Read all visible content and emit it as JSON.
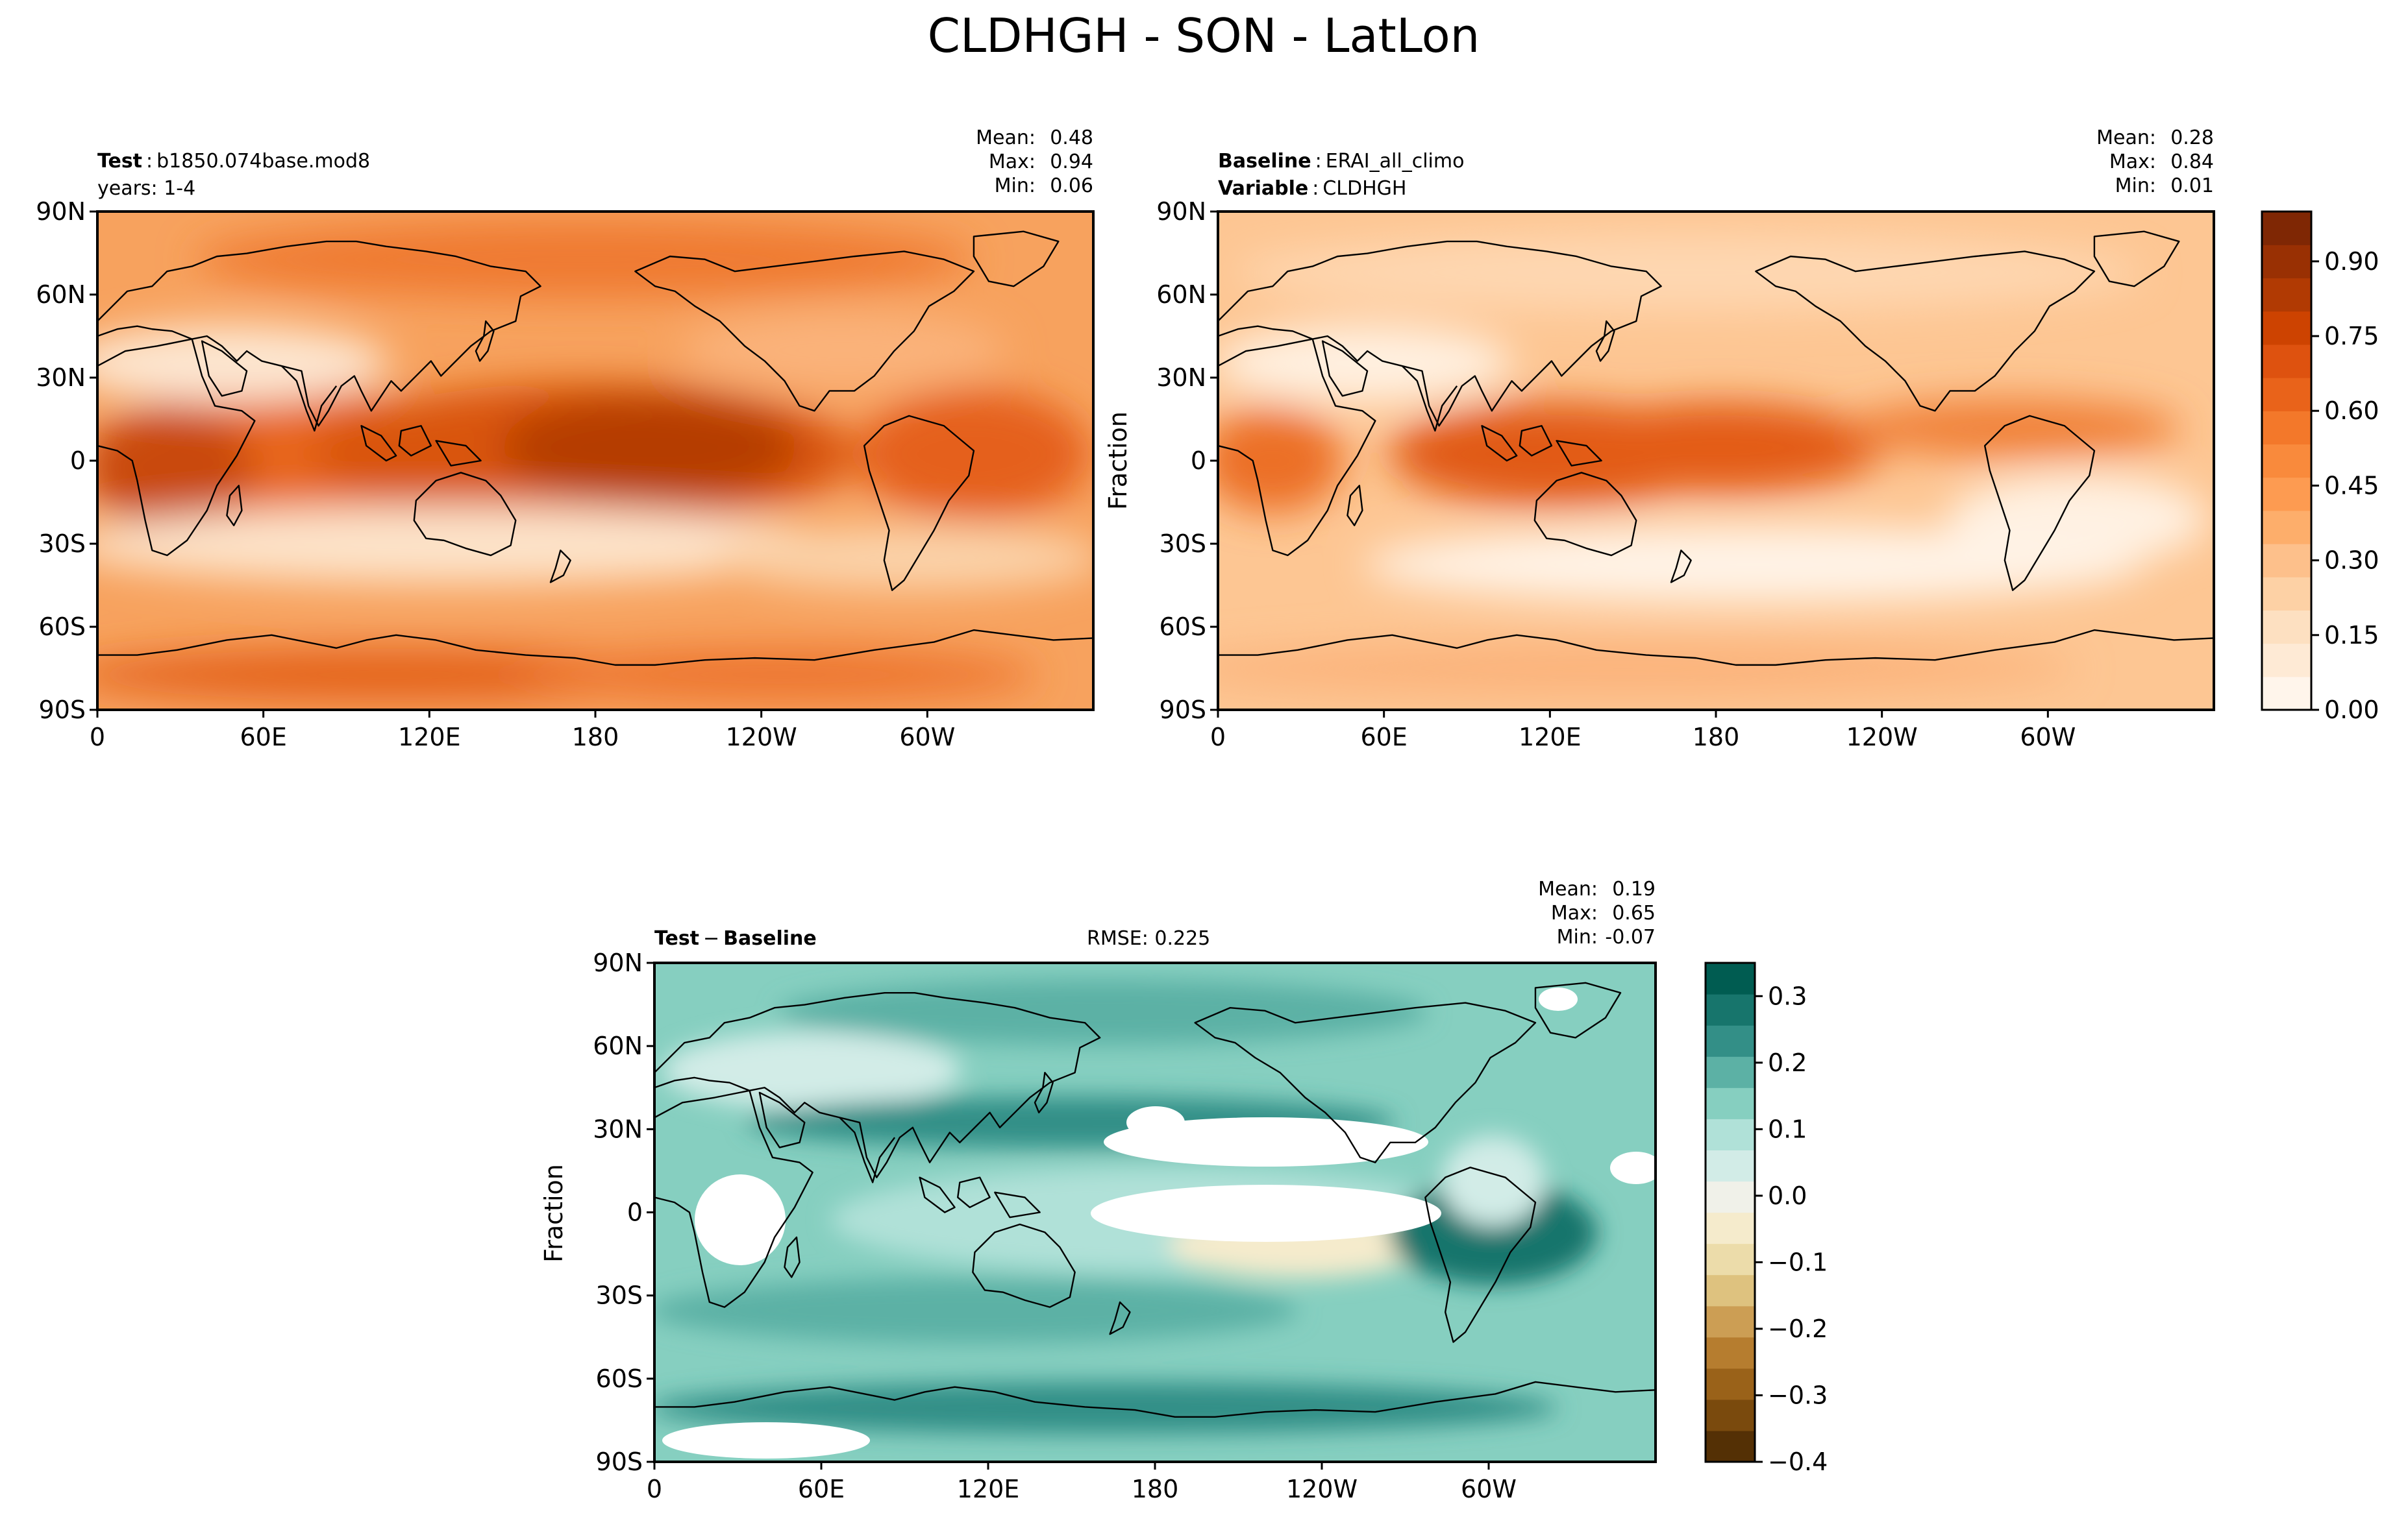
{
  "figure": {
    "title": "CLDHGH - SON - LatLon"
  },
  "lat_ticks": [
    "90N",
    "60N",
    "30N",
    "0",
    "30S",
    "60S",
    "90S"
  ],
  "lon_ticks": [
    "0",
    "60E",
    "120E",
    "180",
    "120W",
    "60W"
  ],
  "panels": {
    "test": {
      "label": "Test",
      "name": "b1850.074base.mod8",
      "years": "years: 1-4",
      "stats": {
        "mean_label": "Mean:",
        "mean": "0.48",
        "max_label": "Max:",
        "max": "0.94",
        "min_label": "Min:",
        "min": "0.06"
      }
    },
    "baseline": {
      "label": "Baseline",
      "name": "ERAI_all_climo",
      "variable_label": "Variable",
      "variable": "CLDHGH",
      "ylabel": "Fraction",
      "stats": {
        "mean_label": "Mean:",
        "mean": "0.28",
        "max_label": "Max:",
        "max": "0.84",
        "min_label": "Min:",
        "min": "0.01"
      }
    },
    "diff": {
      "label": "Test",
      "label2": "Baseline",
      "rmse": "RMSE: 0.225",
      "ylabel": "Fraction",
      "stats": {
        "mean_label": "Mean:",
        "mean": "0.19",
        "max_label": "Max:",
        "max": "0.65",
        "min_label": "Min:",
        "min": "-0.07"
      }
    }
  },
  "colorbars": {
    "oranges": {
      "ticks": [
        "0.00",
        "0.15",
        "0.30",
        "0.45",
        "0.60",
        "0.75",
        "0.90"
      ],
      "range": [
        0,
        1.0
      ],
      "colors": [
        "#fff5eb",
        "#feead5",
        "#fde0c1",
        "#fdd1a5",
        "#fdc08b",
        "#fdae6b",
        "#fd9b51",
        "#f98a3c",
        "#f3782a",
        "#e9631a",
        "#de520f",
        "#cd4301",
        "#b13a03",
        "#993003",
        "#7f2704"
      ]
    },
    "brbg": {
      "ticks": [
        "0.3",
        "0.2",
        "0.1",
        "0.0",
        "−0.1",
        "−0.2",
        "−0.3",
        "−0.4"
      ],
      "range": [
        -0.4,
        0.35
      ],
      "colors": [
        "#543005",
        "#7a4a0d",
        "#9a6219",
        "#b67d2f",
        "#cc9e54",
        "#dec27f",
        "#ecdcaa",
        "#f5ebcc",
        "#f0f1e9",
        "#d2ece7",
        "#b0e1d8",
        "#86cfc0",
        "#5cb1a5",
        "#338f87",
        "#17756c",
        "#005c51"
      ]
    }
  },
  "colors": {
    "land_outline": "#000000",
    "test_base": "#f79a52",
    "baseline_base": "#fdc592",
    "diff_base": "#8fd2c4"
  }
}
